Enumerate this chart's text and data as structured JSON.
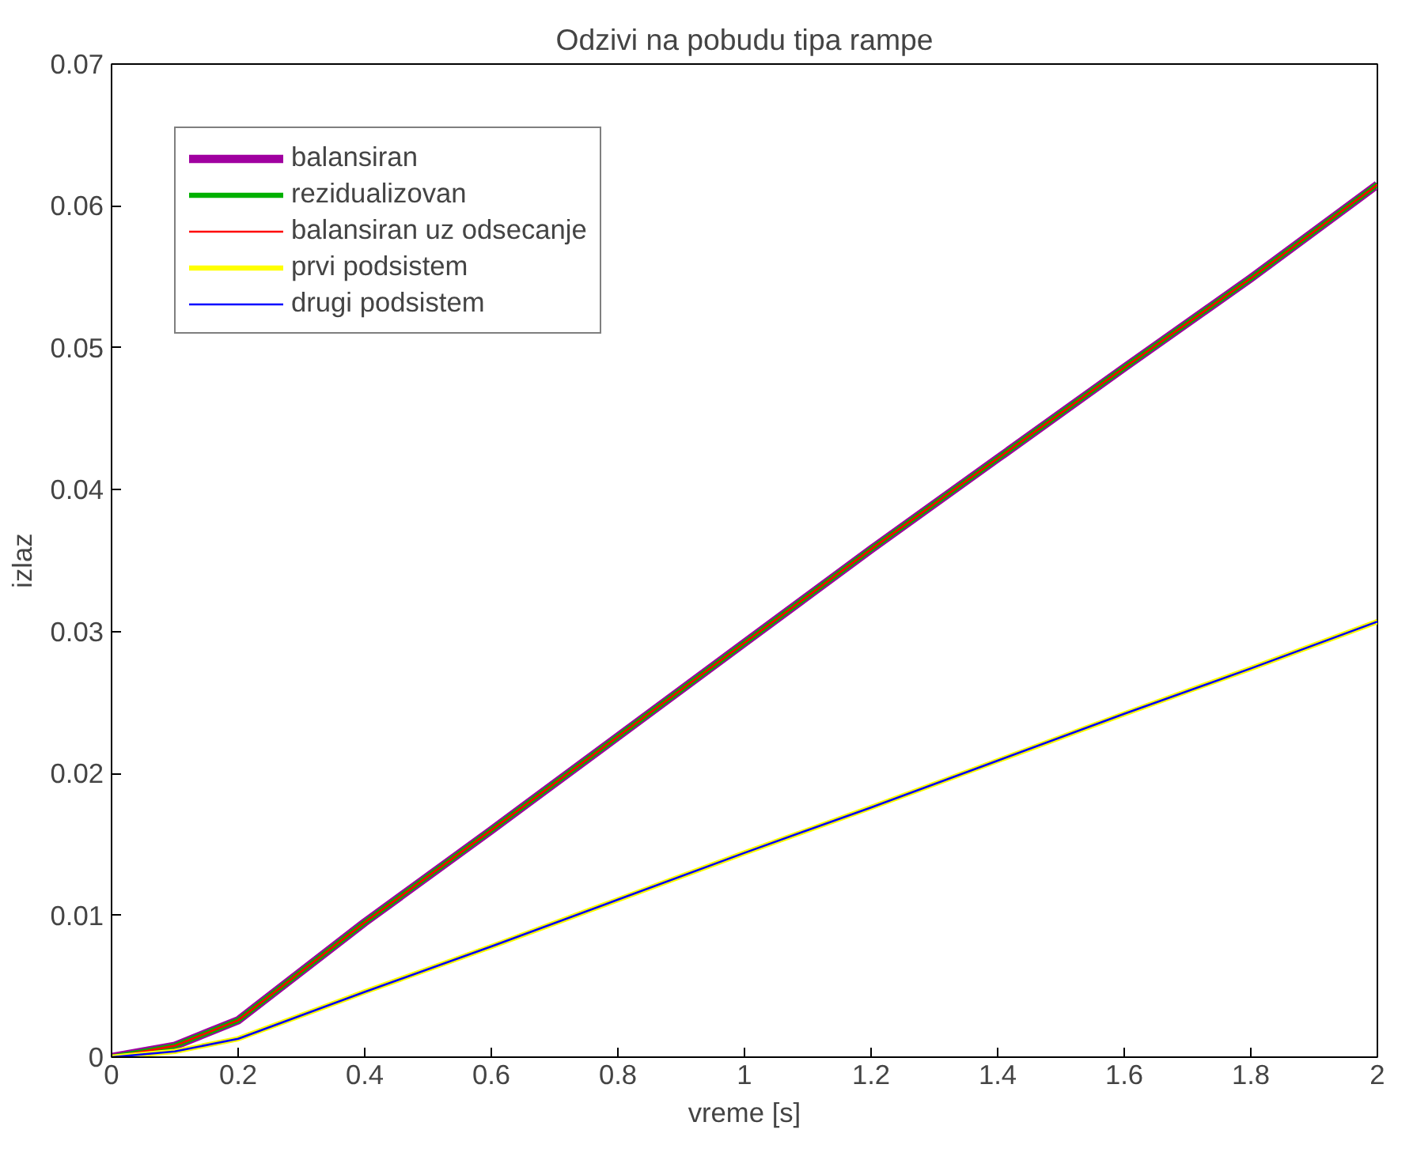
{
  "chart_data": {
    "type": "line",
    "title": "Odzivi na pobudu tipa rampe",
    "xlabel": "vreme [s]",
    "ylabel": "izlaz",
    "x": [
      0,
      0.1,
      0.2,
      0.4,
      0.6,
      0.8,
      1.0,
      1.2,
      1.4,
      1.6,
      1.8,
      2.0
    ],
    "series": [
      {
        "name": "balansiran",
        "color": "#a000a0",
        "values": [
          0,
          0.0008,
          0.0026,
          0.0095,
          0.016,
          0.0226,
          0.0292,
          0.0358,
          0.0422,
          0.0486,
          0.0549,
          0.0615
        ]
      },
      {
        "name": "rezidualizovan",
        "color": "#00b000",
        "values": [
          0,
          0.0008,
          0.0026,
          0.0095,
          0.016,
          0.0226,
          0.0292,
          0.0358,
          0.0422,
          0.0486,
          0.0549,
          0.0615
        ]
      },
      {
        "name": "balansiran uz odsecanje",
        "color": "#ff0000",
        "values": [
          0,
          0.0008,
          0.0026,
          0.0095,
          0.016,
          0.0226,
          0.0292,
          0.0358,
          0.0422,
          0.0486,
          0.0549,
          0.0615
        ]
      },
      {
        "name": "prvi podsistem",
        "color": "#ffff00",
        "values": [
          0,
          0.0004,
          0.0013,
          0.0046,
          0.0078,
          0.0111,
          0.0144,
          0.0176,
          0.0209,
          0.0242,
          0.0274,
          0.0307
        ]
      },
      {
        "name": "drugi podsistem",
        "color": "#0000ff",
        "values": [
          0,
          0.0004,
          0.0013,
          0.0046,
          0.0078,
          0.0111,
          0.0144,
          0.0176,
          0.0209,
          0.0242,
          0.0274,
          0.0307
        ]
      }
    ],
    "xlim": [
      0,
      2
    ],
    "ylim": [
      0,
      0.07
    ],
    "xticks": [
      0,
      0.2,
      0.4,
      0.6,
      0.8,
      1,
      1.2,
      1.4,
      1.6,
      1.8,
      2
    ],
    "yticks": [
      0,
      0.01,
      0.02,
      0.03,
      0.04,
      0.05,
      0.06,
      0.07
    ],
    "grid": false,
    "legend": "top left",
    "line_style": "solid",
    "marker": "none"
  }
}
